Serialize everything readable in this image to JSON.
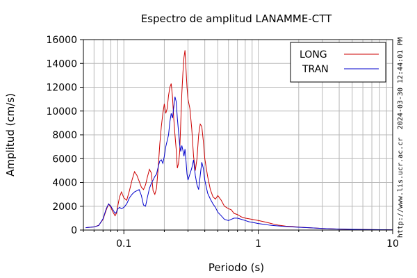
{
  "chart_data": {
    "type": "line",
    "title": "Espectro de amplitud LANAMME-CTT",
    "xlabel": "Periodo (s)",
    "ylabel": "Amplitud (cm/s)",
    "x_scale": "log",
    "xlim": [
      0.05,
      10
    ],
    "ylim": [
      0,
      16000
    ],
    "x_ticks": [
      {
        "value": 0.1,
        "label": "0.1"
      },
      {
        "value": 1,
        "label": "1"
      },
      {
        "value": 10,
        "label": "10"
      }
    ],
    "y_ticks": [
      {
        "value": 0,
        "label": "0"
      },
      {
        "value": 2000,
        "label": "2000"
      },
      {
        "value": 4000,
        "label": "4000"
      },
      {
        "value": 6000,
        "label": "6000"
      },
      {
        "value": 8000,
        "label": "8000"
      },
      {
        "value": 10000,
        "label": "10000"
      },
      {
        "value": 12000,
        "label": "12000"
      },
      {
        "value": 14000,
        "label": "14000"
      },
      {
        "value": 16000,
        "label": "16000"
      }
    ],
    "grid": true,
    "legend_position": "top-right",
    "side_text_top": "2024-03-30 12:44:01 PM",
    "side_text_bottom": "http://www.lis.ucr.ac.cr",
    "series": [
      {
        "name": "LONG",
        "color": "#cc0000",
        "points": [
          [
            0.052,
            200
          ],
          [
            0.06,
            260
          ],
          [
            0.065,
            400
          ],
          [
            0.07,
            900
          ],
          [
            0.074,
            1700
          ],
          [
            0.077,
            2200
          ],
          [
            0.08,
            1900
          ],
          [
            0.083,
            1500
          ],
          [
            0.086,
            1200
          ],
          [
            0.088,
            1400
          ],
          [
            0.09,
            2000
          ],
          [
            0.093,
            2800
          ],
          [
            0.096,
            3200
          ],
          [
            0.1,
            2700
          ],
          [
            0.105,
            2500
          ],
          [
            0.11,
            3300
          ],
          [
            0.115,
            4200
          ],
          [
            0.12,
            4900
          ],
          [
            0.125,
            4600
          ],
          [
            0.13,
            4100
          ],
          [
            0.135,
            3600
          ],
          [
            0.14,
            3400
          ],
          [
            0.145,
            3800
          ],
          [
            0.15,
            4500
          ],
          [
            0.155,
            5100
          ],
          [
            0.16,
            4800
          ],
          [
            0.165,
            3300
          ],
          [
            0.17,
            3000
          ],
          [
            0.175,
            3500
          ],
          [
            0.18,
            5200
          ],
          [
            0.185,
            7200
          ],
          [
            0.19,
            8700
          ],
          [
            0.195,
            9800
          ],
          [
            0.2,
            10600
          ],
          [
            0.205,
            9800
          ],
          [
            0.21,
            10200
          ],
          [
            0.215,
            11300
          ],
          [
            0.22,
            12000
          ],
          [
            0.225,
            12300
          ],
          [
            0.23,
            11200
          ],
          [
            0.235,
            9400
          ],
          [
            0.24,
            8000
          ],
          [
            0.245,
            6800
          ],
          [
            0.25,
            5200
          ],
          [
            0.255,
            5600
          ],
          [
            0.26,
            6500
          ],
          [
            0.265,
            9000
          ],
          [
            0.27,
            11500
          ],
          [
            0.275,
            13200
          ],
          [
            0.28,
            14500
          ],
          [
            0.285,
            15100
          ],
          [
            0.29,
            13500
          ],
          [
            0.295,
            12000
          ],
          [
            0.3,
            11000
          ],
          [
            0.31,
            10200
          ],
          [
            0.32,
            8500
          ],
          [
            0.33,
            6200
          ],
          [
            0.34,
            5000
          ],
          [
            0.35,
            6000
          ],
          [
            0.36,
            8000
          ],
          [
            0.37,
            8900
          ],
          [
            0.38,
            8700
          ],
          [
            0.39,
            7500
          ],
          [
            0.4,
            6000
          ],
          [
            0.42,
            4500
          ],
          [
            0.44,
            3400
          ],
          [
            0.46,
            2800
          ],
          [
            0.48,
            2600
          ],
          [
            0.5,
            2900
          ],
          [
            0.53,
            2500
          ],
          [
            0.56,
            2000
          ],
          [
            0.6,
            1800
          ],
          [
            0.63,
            1700
          ],
          [
            0.66,
            1400
          ],
          [
            0.7,
            1300
          ],
          [
            0.75,
            1100
          ],
          [
            0.8,
            1000
          ],
          [
            0.85,
            950
          ],
          [
            0.9,
            900
          ],
          [
            1.0,
            800
          ],
          [
            1.1,
            700
          ],
          [
            1.2,
            600
          ],
          [
            1.3,
            500
          ],
          [
            1.4,
            420
          ],
          [
            1.5,
            370
          ],
          [
            1.6,
            330
          ],
          [
            1.8,
            290
          ],
          [
            2.0,
            250
          ],
          [
            2.2,
            220
          ],
          [
            2.5,
            180
          ],
          [
            2.8,
            150
          ],
          [
            3.0,
            130
          ],
          [
            3.5,
            100
          ],
          [
            4.0,
            80
          ],
          [
            5.0,
            60
          ],
          [
            6.0,
            45
          ],
          [
            7.0,
            35
          ],
          [
            8.0,
            30
          ],
          [
            10.0,
            25
          ]
        ]
      },
      {
        "name": "TRAN",
        "color": "#0000cc",
        "points": [
          [
            0.052,
            200
          ],
          [
            0.06,
            260
          ],
          [
            0.065,
            380
          ],
          [
            0.07,
            950
          ],
          [
            0.074,
            1800
          ],
          [
            0.077,
            2200
          ],
          [
            0.08,
            2000
          ],
          [
            0.083,
            1700
          ],
          [
            0.086,
            1400
          ],
          [
            0.088,
            1500
          ],
          [
            0.09,
            1800
          ],
          [
            0.093,
            1900
          ],
          [
            0.096,
            1800
          ],
          [
            0.1,
            1900
          ],
          [
            0.105,
            2200
          ],
          [
            0.11,
            2700
          ],
          [
            0.115,
            3000
          ],
          [
            0.12,
            3200
          ],
          [
            0.125,
            3300
          ],
          [
            0.13,
            3400
          ],
          [
            0.135,
            2900
          ],
          [
            0.14,
            2100
          ],
          [
            0.145,
            2000
          ],
          [
            0.15,
            2800
          ],
          [
            0.155,
            3500
          ],
          [
            0.16,
            3900
          ],
          [
            0.165,
            4200
          ],
          [
            0.17,
            4500
          ],
          [
            0.175,
            4700
          ],
          [
            0.18,
            5300
          ],
          [
            0.185,
            5800
          ],
          [
            0.19,
            5900
          ],
          [
            0.195,
            5600
          ],
          [
            0.2,
            6200
          ],
          [
            0.205,
            7000
          ],
          [
            0.21,
            7500
          ],
          [
            0.215,
            8000
          ],
          [
            0.22,
            9100
          ],
          [
            0.225,
            9800
          ],
          [
            0.23,
            9400
          ],
          [
            0.235,
            10300
          ],
          [
            0.24,
            11200
          ],
          [
            0.245,
            10800
          ],
          [
            0.25,
            9400
          ],
          [
            0.255,
            8300
          ],
          [
            0.26,
            7200
          ],
          [
            0.265,
            6600
          ],
          [
            0.27,
            7100
          ],
          [
            0.275,
            6700
          ],
          [
            0.28,
            6200
          ],
          [
            0.285,
            6800
          ],
          [
            0.29,
            5800
          ],
          [
            0.295,
            4700
          ],
          [
            0.3,
            4200
          ],
          [
            0.31,
            4700
          ],
          [
            0.32,
            5200
          ],
          [
            0.33,
            5900
          ],
          [
            0.34,
            4600
          ],
          [
            0.35,
            3800
          ],
          [
            0.36,
            3400
          ],
          [
            0.37,
            4600
          ],
          [
            0.38,
            5700
          ],
          [
            0.39,
            5200
          ],
          [
            0.4,
            4200
          ],
          [
            0.42,
            3100
          ],
          [
            0.44,
            2600
          ],
          [
            0.46,
            2200
          ],
          [
            0.48,
            1900
          ],
          [
            0.5,
            1500
          ],
          [
            0.53,
            1200
          ],
          [
            0.56,
            900
          ],
          [
            0.6,
            800
          ],
          [
            0.63,
            900
          ],
          [
            0.66,
            1000
          ],
          [
            0.7,
            1000
          ],
          [
            0.75,
            900
          ],
          [
            0.8,
            800
          ],
          [
            0.85,
            700
          ],
          [
            0.9,
            650
          ],
          [
            1.0,
            550
          ],
          [
            1.1,
            480
          ],
          [
            1.2,
            420
          ],
          [
            1.3,
            380
          ],
          [
            1.4,
            350
          ],
          [
            1.5,
            320
          ],
          [
            1.6,
            300
          ],
          [
            1.8,
            260
          ],
          [
            2.0,
            230
          ],
          [
            2.2,
            210
          ],
          [
            2.5,
            180
          ],
          [
            2.8,
            150
          ],
          [
            3.0,
            130
          ],
          [
            3.5,
            100
          ],
          [
            4.0,
            80
          ],
          [
            5.0,
            60
          ],
          [
            6.0,
            45
          ],
          [
            7.0,
            35
          ],
          [
            8.0,
            30
          ],
          [
            10.0,
            25
          ]
        ]
      }
    ]
  }
}
